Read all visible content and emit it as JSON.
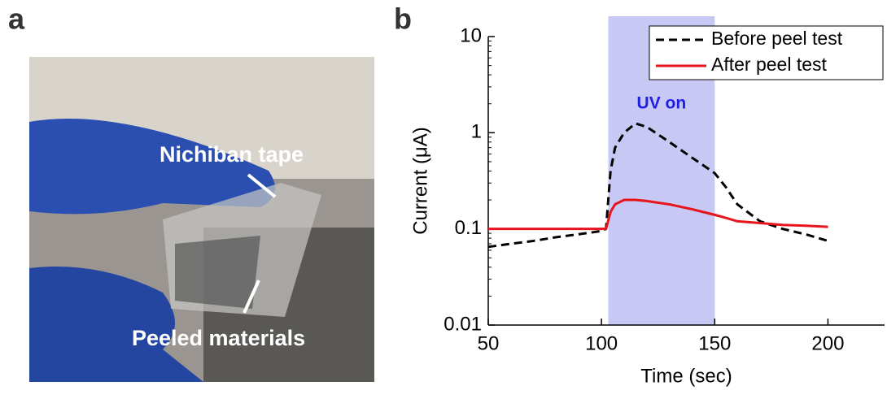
{
  "panels": {
    "a": "a",
    "b": "b"
  },
  "photo": {
    "annotations": [
      "Nichiban tape",
      "Peeled materials"
    ]
  },
  "chart_data": {
    "type": "line",
    "xlabel": "Time (sec)",
    "ylabel": "Current (μA)",
    "annotation": "UV on",
    "shaded": {
      "x": [
        103,
        150
      ],
      "color": "#c8c8f5"
    },
    "x": [
      50,
      60,
      70,
      80,
      90,
      100,
      102,
      104,
      106,
      110,
      115,
      120,
      130,
      140,
      150,
      155,
      160,
      170,
      180,
      190,
      200
    ],
    "series": [
      {
        "name": "Before peel test",
        "color": "#000000",
        "dash": true,
        "values": [
          0.065,
          0.07,
          0.075,
          0.082,
          0.088,
          0.095,
          0.1,
          0.4,
          0.7,
          1.0,
          1.25,
          1.15,
          0.8,
          0.55,
          0.38,
          0.27,
          0.18,
          0.12,
          0.1,
          0.088,
          0.075
        ]
      },
      {
        "name": "After peel test",
        "color": "#e8141c",
        "dash": false,
        "values": [
          0.1,
          0.1,
          0.1,
          0.1,
          0.1,
          0.1,
          0.1,
          0.15,
          0.18,
          0.2,
          0.2,
          0.195,
          0.18,
          0.16,
          0.14,
          0.13,
          0.12,
          0.115,
          0.11,
          0.108,
          0.105
        ]
      }
    ],
    "xlim": [
      50,
      225
    ],
    "xticks": [
      50,
      100,
      150,
      200
    ],
    "ylim": [
      0.01,
      10
    ],
    "yticks": [
      0.01,
      0.1,
      1,
      10
    ],
    "log_y": true,
    "legend": "upper right"
  }
}
